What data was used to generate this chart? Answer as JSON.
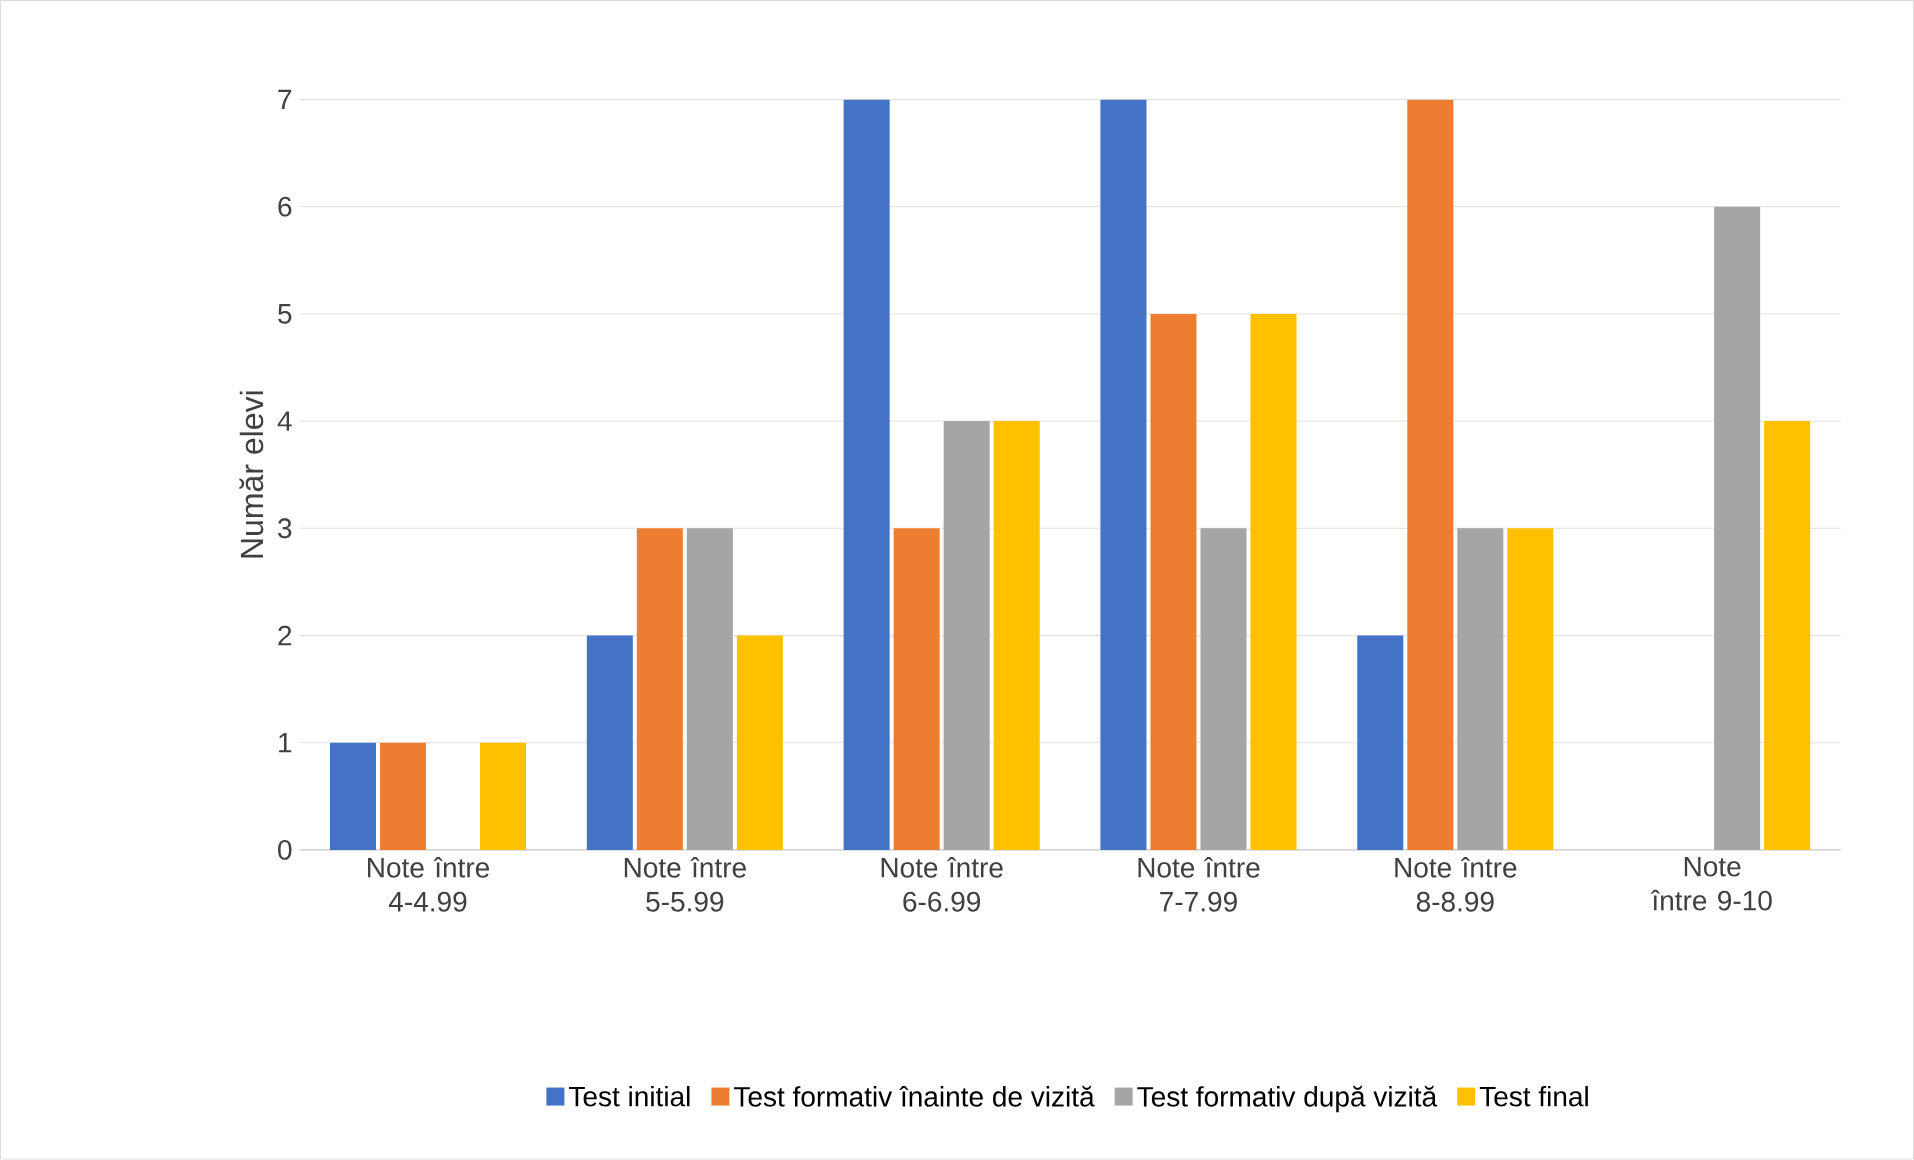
{
  "chart_data": {
    "type": "bar",
    "ylabel": "Număr elevi",
    "categories": [
      "Note între 4-4.99",
      "Note între 5-5.99",
      "Note între 6-6.99",
      "Note între 7-7.99",
      "Note între 8-8.99",
      "Note între 9-10"
    ],
    "series": [
      {
        "name": "Test initial",
        "color": "#4472c4",
        "values": [
          1,
          2,
          7,
          7,
          2,
          0
        ]
      },
      {
        "name": "Test formativ înainte de vizită",
        "color": "#ed7d31",
        "values": [
          1,
          3,
          3,
          5,
          7,
          0
        ]
      },
      {
        "name": "Test formativ după vizită",
        "color": "#a5a5a5",
        "values": [
          0,
          3,
          4,
          3,
          3,
          6
        ]
      },
      {
        "name": "Test final",
        "color": "#ffc000",
        "values": [
          1,
          2,
          4,
          5,
          3,
          4
        ]
      }
    ],
    "ylim": [
      0,
      7
    ],
    "yticks": [
      0,
      1,
      2,
      3,
      4,
      5,
      6,
      7
    ],
    "grid": "y",
    "legend": "bottom"
  }
}
